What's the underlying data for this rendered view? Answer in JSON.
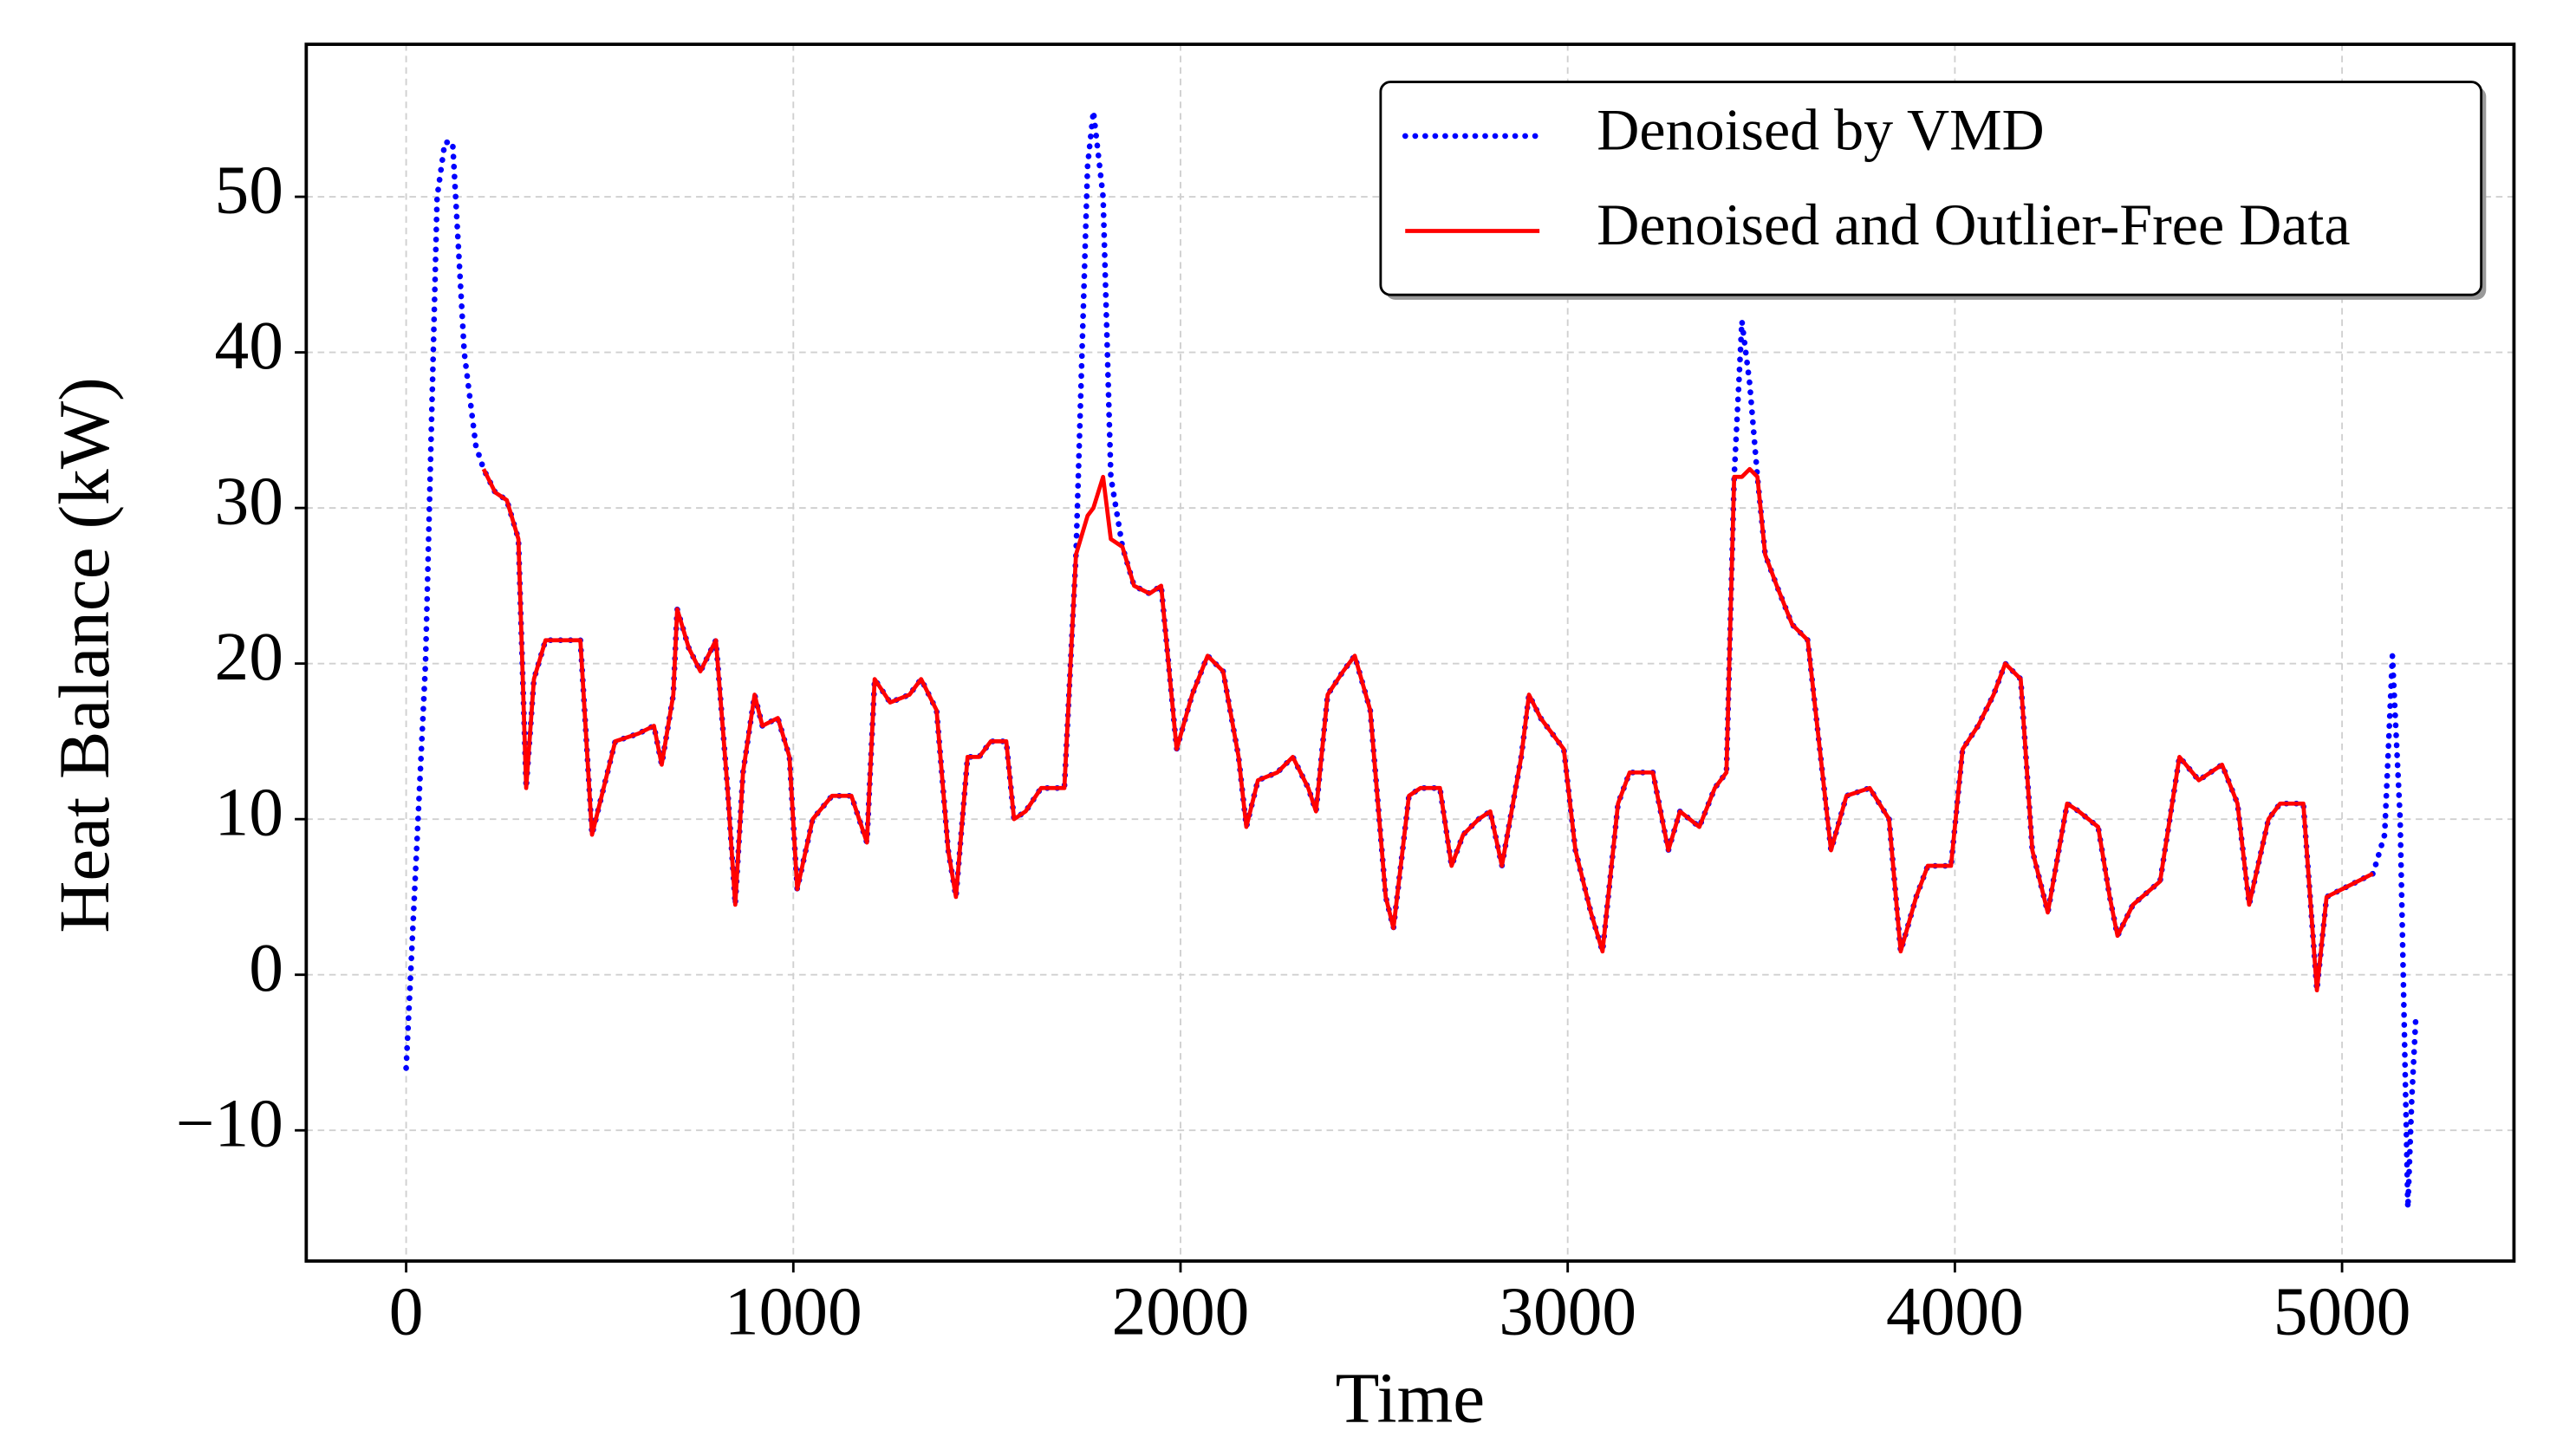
{
  "chart_data": {
    "type": "line",
    "x_label": "Time",
    "y_label": "Heat Balance (kW)",
    "x": [
      0,
      50,
      80,
      100,
      120,
      150,
      180,
      200,
      230,
      260,
      290,
      310,
      330,
      360,
      400,
      450,
      480,
      510,
      540,
      600,
      640,
      660,
      690,
      700,
      730,
      760,
      800,
      830,
      850,
      870,
      900,
      920,
      960,
      990,
      1010,
      1050,
      1100,
      1150,
      1190,
      1210,
      1250,
      1300,
      1330,
      1370,
      1400,
      1420,
      1450,
      1480,
      1510,
      1550,
      1570,
      1600,
      1640,
      1700,
      1730,
      1760,
      1775,
      1800,
      1820,
      1850,
      1880,
      1920,
      1950,
      1990,
      2030,
      2070,
      2110,
      2150,
      2170,
      2200,
      2250,
      2290,
      2330,
      2350,
      2380,
      2420,
      2450,
      2490,
      2530,
      2550,
      2590,
      2620,
      2670,
      2700,
      2730,
      2770,
      2800,
      2830,
      2880,
      2900,
      2930,
      2960,
      2990,
      3020,
      3060,
      3090,
      3130,
      3160,
      3220,
      3260,
      3290,
      3340,
      3380,
      3410,
      3430,
      3450,
      3470,
      3490,
      3510,
      3540,
      3580,
      3620,
      3680,
      3720,
      3780,
      3830,
      3860,
      3900,
      3930,
      3990,
      4020,
      4060,
      4100,
      4130,
      4170,
      4200,
      4240,
      4290,
      4320,
      4370,
      4400,
      4420,
      4460,
      4530,
      4580,
      4630,
      4690,
      4730,
      4760,
      4810,
      4840,
      4900,
      4935,
      4960,
      5000,
      5040,
      5080,
      5110,
      5130,
      5150,
      5170,
      5180,
      5190
    ],
    "series": [
      {
        "name": "Denoised by VMD",
        "color": "#0000ff",
        "style": "dotted",
        "values": [
          -6,
          20,
          50,
          53.5,
          53.5,
          40,
          34,
          32.5,
          31,
          30.5,
          28,
          12,
          19,
          21.5,
          21.5,
          21.5,
          9,
          12,
          15,
          15.5,
          16,
          13.5,
          18,
          23.5,
          21,
          19.5,
          21.5,
          12,
          4.5,
          13,
          18,
          16,
          16.5,
          14,
          5.5,
          10,
          11.5,
          11.5,
          8.5,
          19,
          17.5,
          18,
          19,
          17,
          8,
          5,
          14,
          14,
          15,
          15,
          10,
          10.5,
          12,
          12,
          27,
          52,
          55.5,
          50,
          32,
          27.5,
          25,
          24.5,
          25,
          14.5,
          18,
          20.5,
          19.5,
          14,
          9.5,
          12.5,
          13,
          14,
          12,
          10.5,
          18,
          19.5,
          20.5,
          17,
          5,
          3,
          11.5,
          12,
          12,
          7,
          9,
          10,
          10.5,
          7,
          14,
          18,
          16.5,
          15.5,
          14.5,
          8,
          4,
          1.5,
          11,
          13,
          13,
          8,
          10.5,
          9.5,
          12,
          13,
          32,
          42,
          38,
          32,
          27,
          25,
          22.5,
          21.5,
          8,
          11.5,
          12,
          10,
          1.5,
          5,
          7,
          7,
          14.5,
          16,
          18,
          20,
          19,
          8,
          4,
          11,
          10.5,
          9.5,
          5,
          2.5,
          4.5,
          6,
          14,
          12.5,
          13.5,
          11,
          4.5,
          10,
          11,
          11,
          -1,
          5,
          5.5,
          6,
          6.5,
          9,
          20.5,
          10,
          -15,
          -8,
          -3
        ]
      },
      {
        "name": "Denoised and Outlier-Free Data",
        "color": "#ff0000",
        "style": "solid",
        "values": [
          null,
          null,
          null,
          null,
          null,
          null,
          null,
          32.5,
          31,
          30.5,
          28,
          12,
          19,
          21.5,
          21.5,
          21.5,
          9,
          12,
          15,
          15.5,
          16,
          13.5,
          18,
          23.5,
          21,
          19.5,
          21.5,
          12,
          4.5,
          13,
          18,
          16,
          16.5,
          14,
          5.5,
          10,
          11.5,
          11.5,
          8.5,
          19,
          17.5,
          18,
          19,
          17,
          8,
          5,
          14,
          14,
          15,
          15,
          10,
          10.5,
          12,
          12,
          27,
          29.5,
          30,
          32,
          28,
          27.5,
          25,
          24.5,
          25,
          14.5,
          18,
          20.5,
          19.5,
          14,
          9.5,
          12.5,
          13,
          14,
          12,
          10.5,
          18,
          19.5,
          20.5,
          17,
          5,
          3,
          11.5,
          12,
          12,
          7,
          9,
          10,
          10.5,
          7,
          14,
          18,
          16.5,
          15.5,
          14.5,
          8,
          4,
          1.5,
          11,
          13,
          13,
          8,
          10.5,
          9.5,
          12,
          13,
          32,
          32,
          32.5,
          32,
          27,
          25,
          22.5,
          21.5,
          8,
          11.5,
          12,
          10,
          1.5,
          5,
          7,
          7,
          14.5,
          16,
          18,
          20,
          19,
          8,
          4,
          11,
          10.5,
          9.5,
          5,
          2.5,
          4.5,
          6,
          14,
          12.5,
          13.5,
          11,
          4.5,
          10,
          11,
          11,
          -1,
          5,
          5.5,
          6,
          6.5,
          null,
          null,
          null,
          null,
          null,
          null
        ]
      }
    ],
    "xlim": [
      -258,
      5444
    ],
    "ylim": [
      -18.4,
      59.8
    ],
    "xticks": [
      0,
      1000,
      2000,
      3000,
      4000,
      5000
    ],
    "yticks": [
      {
        "value": -10,
        "label": "−10"
      },
      0,
      10,
      20,
      30,
      40,
      50
    ],
    "grid": true,
    "legend": "upper right"
  }
}
